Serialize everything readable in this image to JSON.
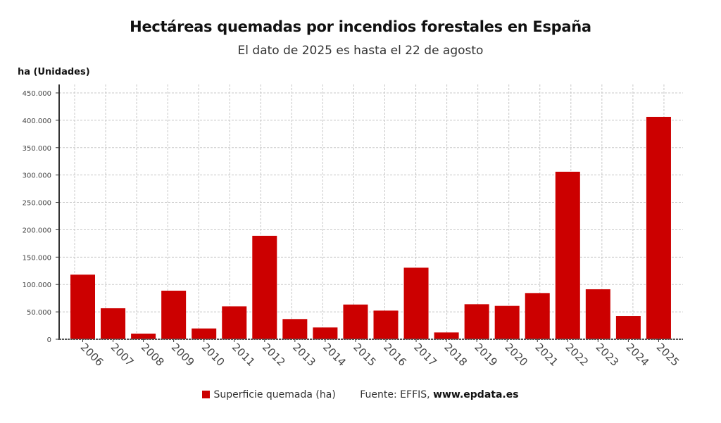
{
  "chart_data": {
    "type": "bar",
    "title": "Hectáreas quemadas por incendios forestales en España",
    "subtitle": "El dato de 2025 es hasta el 22 de agosto",
    "ylabel": "ha (Unidades)",
    "xlabel": "",
    "categories": [
      "2006",
      "2007",
      "2008",
      "2009",
      "2010",
      "2011",
      "2012",
      "2013",
      "2014",
      "2015",
      "2016",
      "2017",
      "2018",
      "2019",
      "2020",
      "2021",
      "2022",
      "2023",
      "2024",
      "2025"
    ],
    "series": [
      {
        "name": "Superficie quemada (ha)",
        "color": "#cc0000",
        "values": [
          118000,
          56600,
          10300,
          88700,
          19700,
          60000,
          189000,
          36900,
          21500,
          63400,
          52300,
          130700,
          12400,
          63900,
          60900,
          84400,
          306000,
          91300,
          42400,
          406300
        ]
      }
    ],
    "ylim": [
      0,
      450000
    ],
    "yticks": [
      0,
      50000,
      100000,
      150000,
      200000,
      250000,
      300000,
      350000,
      400000,
      450000
    ],
    "ytick_labels": [
      "0",
      "50.000",
      "100.000",
      "150.000",
      "200.000",
      "250.000",
      "300.000",
      "350.000",
      "400.000",
      "450.000"
    ],
    "grid": true,
    "legend_position": "bottom"
  },
  "footer": {
    "legend_label": "Superficie quemada (ha)",
    "source_prefix": "Fuente: EFFIS, ",
    "source_site": "www.epdata.es"
  }
}
